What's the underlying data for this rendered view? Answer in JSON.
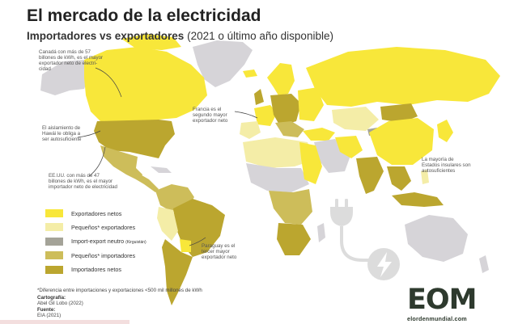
{
  "header": {
    "title": "El mercado de la electricidad",
    "subtitle_main": "Importadores vs exportadores",
    "subtitle_paren": "(2021 o último año disponible)"
  },
  "colors": {
    "exportadores_netos": "#f8e73a",
    "pequenos_exportadores": "#f4eda7",
    "import_export_neutro": "#a4a398",
    "pequenos_importadores": "#cdbd5a",
    "importadores_netos": "#bba62f",
    "no_data": "#d6d4d8",
    "background": "#ffffff"
  },
  "annotations": {
    "canada": [
      "Canadá con más de 57",
      "billones de kWh, es el mayor",
      "exportador neto de electri-",
      "cidad"
    ],
    "hawaii": [
      "El aislamiento de",
      "Hawái le obliga a",
      "ser autosuficiente"
    ],
    "eeuu": [
      "EE.UU. con más de 47",
      "billones de kWh, es el mayor",
      "importador neto de electricidad"
    ],
    "francia": [
      "Francia es el",
      "segundo mayor",
      "exportador neto"
    ],
    "paraguay": [
      "Paraguay es el",
      "tercer mayor",
      "exportador neto"
    ],
    "insulares": [
      "La mayoría de",
      "Estados insulares son",
      "autosuficientes"
    ]
  },
  "legend": [
    {
      "label": "Exportadores netos",
      "note": "",
      "color": "#f8e73a"
    },
    {
      "label": "Pequeños* exportadores",
      "note": "",
      "color": "#f4eda7"
    },
    {
      "label": "Import-export neutro",
      "note": "(Kirguistán)",
      "color": "#a4a398"
    },
    {
      "label": "Pequeños* importadores",
      "note": "",
      "color": "#cdbd5a"
    },
    {
      "label": "Importadores netos",
      "note": "",
      "color": "#bba62f"
    }
  ],
  "footnote": "*Diferencia entre importaciones y exportaciones <500 mil millones de kWh",
  "credits": {
    "cartografia_label": "Cartografía:",
    "cartografia": "Abel Gil Lobo (2022)",
    "fuente_label": "Fuente:",
    "fuente": "EIA (2021)"
  },
  "logo": {
    "text": "EOM",
    "sub": "elordenmundial.com"
  },
  "icons": [
    "plug-icon",
    "lightning-icon"
  ]
}
